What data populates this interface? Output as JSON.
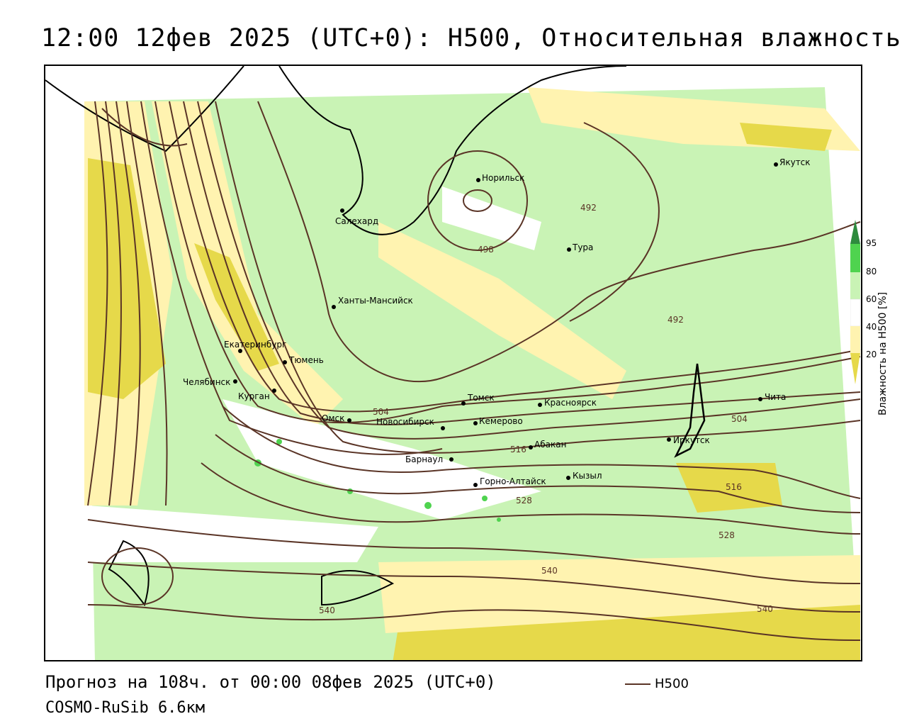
{
  "title": "12:00 12фев 2025 (UTC+0): H500, Относительная влажность",
  "footer": {
    "forecast": "Прогноз на 108ч. от 00:00 08фев 2025 (UTC+0)",
    "model": "COSMO-RuSib 6.6км",
    "legend_line_label": "H500"
  },
  "legend": {
    "title": "Влажность на H500 [%]",
    "ticks": [
      "95",
      "80",
      "60",
      "40",
      "20"
    ],
    "colors": {
      "dark_green": "#2e8b3e",
      "green": "#4fd34f",
      "light_green": "#c9f3b5",
      "white": "#ffffff",
      "light_yellow": "#fff3b0",
      "yellow": "#e6d94a"
    }
  },
  "cities": [
    {
      "name": "Норильск"
    },
    {
      "name": "Якутск"
    },
    {
      "name": "Салехард"
    },
    {
      "name": "Тура"
    },
    {
      "name": "Ханты-Мансийск"
    },
    {
      "name": "Екатеринбург"
    },
    {
      "name": "Тюмень"
    },
    {
      "name": "Челябинск"
    },
    {
      "name": "Курган"
    },
    {
      "name": "Омск"
    },
    {
      "name": "Новосибирск"
    },
    {
      "name": "Томск"
    },
    {
      "name": "Кемерово"
    },
    {
      "name": "Красноярск"
    },
    {
      "name": "Абакан"
    },
    {
      "name": "Барнаул"
    },
    {
      "name": "Горно-Алтайск"
    },
    {
      "name": "Кызыл"
    },
    {
      "name": "Иркутск"
    },
    {
      "name": "Чита"
    }
  ],
  "contour_labels": [
    "492",
    "498",
    "492",
    "504",
    "504",
    "516",
    "516",
    "528",
    "528",
    "540",
    "540",
    "540"
  ],
  "colors": {
    "contour": "#5a3426"
  }
}
